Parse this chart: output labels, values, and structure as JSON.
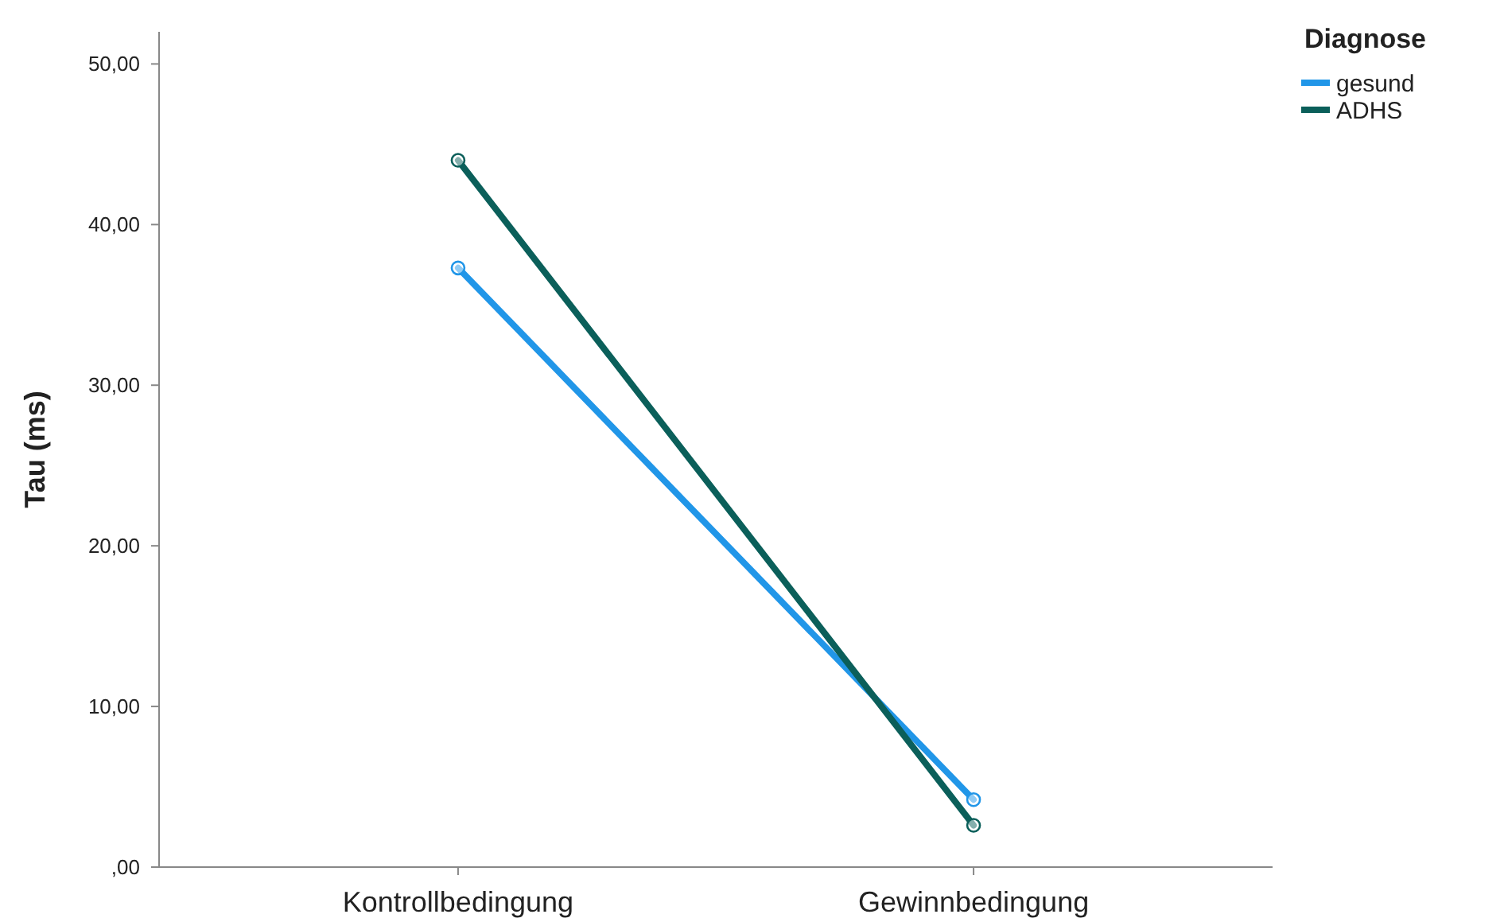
{
  "chart_data": {
    "type": "line",
    "ylabel": "Tau (ms)",
    "legend_title": "Diagnose",
    "categories": [
      "Kontrollbedingung",
      "Gewinnbedingung"
    ],
    "series": [
      {
        "name": "gesund",
        "color": "#2196e8",
        "values": [
          37.3,
          4.2
        ]
      },
      {
        "name": "ADHS",
        "color": "#0b5f5a",
        "values": [
          44.0,
          2.6
        ]
      }
    ],
    "ylim": [
      0,
      52
    ],
    "yticks": [
      {
        "value": 0,
        "label": ",00"
      },
      {
        "value": 10,
        "label": "10,00"
      },
      {
        "value": 20,
        "label": "20,00"
      },
      {
        "value": 30,
        "label": "30,00"
      },
      {
        "value": 40,
        "label": "40,00"
      },
      {
        "value": 50,
        "label": "50,00"
      }
    ],
    "grid": false,
    "legend": "top right",
    "marker": "circle",
    "line_style": "solid"
  }
}
